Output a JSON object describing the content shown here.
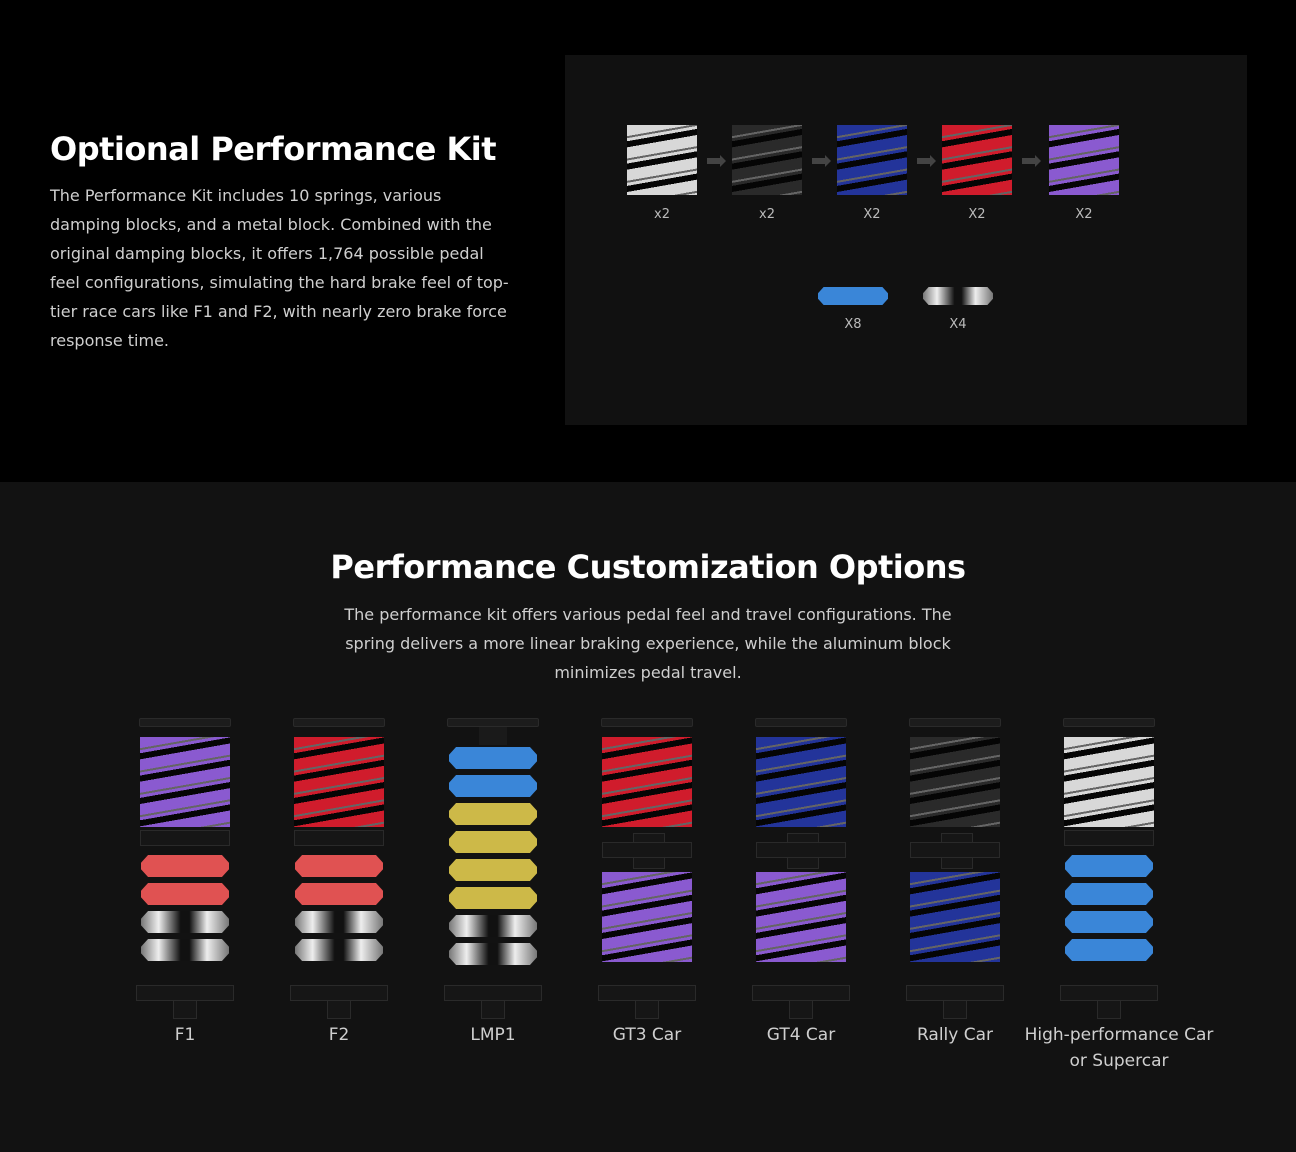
{
  "kit": {
    "title": "Optional Performance Kit",
    "description": "The Performance Kit includes 10 springs, various damping blocks, and a metal block. Combined with the original damping blocks, it offers 1,764 possible pedal feel configurations, simulating the hard brake feel of top-tier race cars like F1 and F2, with nearly zero brake force response time.",
    "springs": [
      {
        "color": "#d8d8d8",
        "qty": "x2"
      },
      {
        "color": "#2a2a2a",
        "qty": "x2"
      },
      {
        "color": "#23349a",
        "qty": "X2"
      },
      {
        "color": "#d01c2c",
        "qty": "X2"
      },
      {
        "color": "#8a5ad0",
        "qty": "X2"
      }
    ],
    "blocks": [
      {
        "kind": "blue",
        "qty": "X8"
      },
      {
        "kind": "metal",
        "qty": "X4"
      }
    ]
  },
  "custom": {
    "title": "Performance Customization Options",
    "description": "The performance kit offers various pedal feel and travel configurations. The spring delivers a more linear braking experience, while the aluminum block minimizes pedal travel.",
    "colors": {
      "purple": "#8a5ad0",
      "red": "#d01c2c",
      "blue": "#23349a",
      "black": "#2a2a2a",
      "white": "#d8d8d8",
      "blueblock": "#3a86d8",
      "redblock": "#e05252",
      "yellowblock": "#cdb948"
    },
    "configs": [
      {
        "label": "F1",
        "parts": [
          "spring:purple",
          "plate",
          "block:redblock",
          "block:redblock",
          "block:metal",
          "block:metal"
        ]
      },
      {
        "label": "F2",
        "parts": [
          "spring:red",
          "plate",
          "block:redblock",
          "block:redblock",
          "block:metal",
          "block:metal"
        ]
      },
      {
        "label": "LMP1",
        "parts": [
          "rod",
          "block:blueblock",
          "block:blueblock",
          "block:yellowblock",
          "block:yellowblock",
          "block:yellowblock",
          "block:yellowblock",
          "block:metal",
          "block:metal"
        ]
      },
      {
        "label": "GT3 Car",
        "parts": [
          "spring:red",
          "cross",
          "spring:purple"
        ]
      },
      {
        "label": "GT4 Car",
        "parts": [
          "spring:blue",
          "cross",
          "spring:purple"
        ]
      },
      {
        "label": "Rally Car",
        "parts": [
          "spring:black",
          "cross",
          "spring:blue"
        ]
      },
      {
        "label": "High-performance Car or Supercar",
        "parts": [
          "spring:white",
          "plate",
          "block:blueblock",
          "block:blueblock",
          "block:blueblock",
          "block:blueblock"
        ]
      }
    ]
  }
}
